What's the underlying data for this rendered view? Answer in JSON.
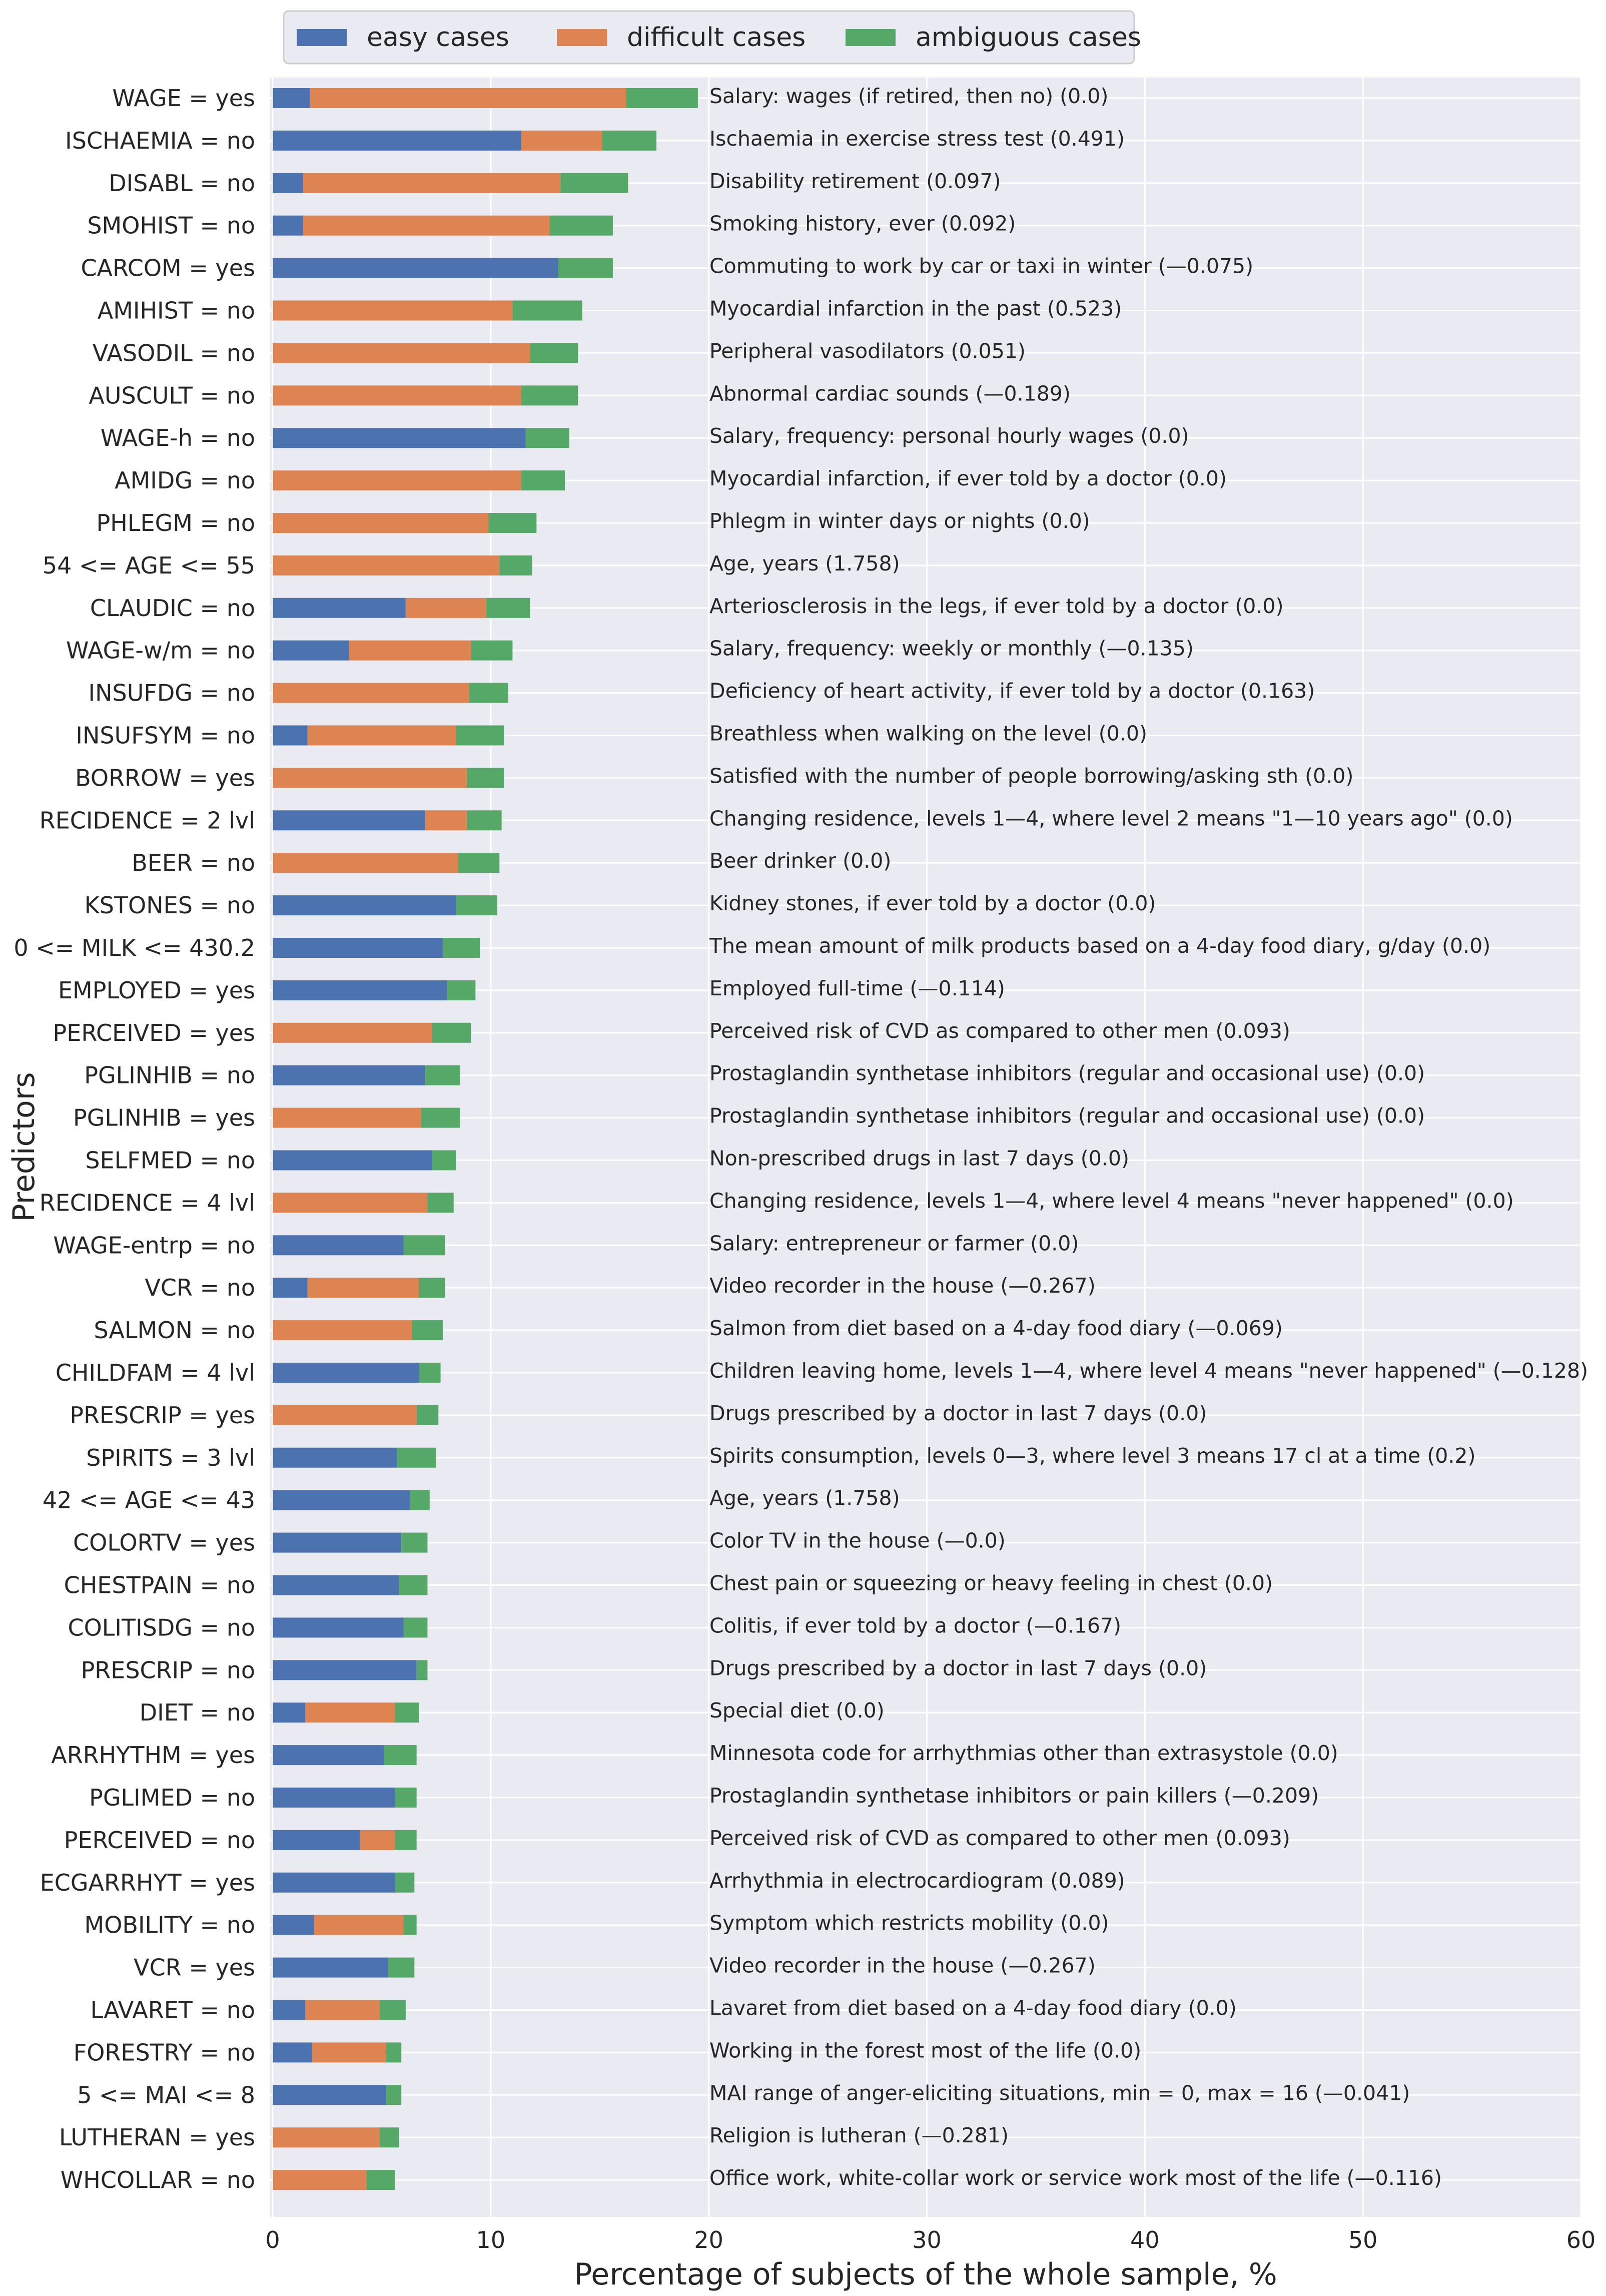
{
  "chart_data": {
    "type": "bar",
    "orientation": "horizontal",
    "stacked": true,
    "xlabel": "Percentage of subjects of the whole sample, %",
    "ylabel": "Predictors",
    "xlim": [
      0,
      60
    ],
    "xticks": [
      0,
      10,
      20,
      30,
      40,
      50,
      60
    ],
    "grid": true,
    "legend_position": "top",
    "series": [
      {
        "name": "easy cases",
        "color": "#4c72b0"
      },
      {
        "name": "difficult cases",
        "color": "#dd8452"
      },
      {
        "name": "ambiguous cases",
        "color": "#55a868"
      }
    ],
    "rows": [
      {
        "predictor": "WAGE = yes",
        "description": "Salary: wages (if retired, then no) (0.0)",
        "easy": 1.7,
        "difficult": 14.5,
        "ambiguous": 3.3
      },
      {
        "predictor": "ISCHAEMIA = no",
        "description": "Ischaemia in exercise stress test (0.491)",
        "easy": 11.4,
        "difficult": 3.7,
        "ambiguous": 2.5
      },
      {
        "predictor": "DISABL = no",
        "description": "Disability retirement (0.097)",
        "easy": 1.4,
        "difficult": 11.8,
        "ambiguous": 3.1
      },
      {
        "predictor": "SMOHIST = no",
        "description": "Smoking history, ever (0.092)",
        "easy": 1.4,
        "difficult": 11.3,
        "ambiguous": 2.9
      },
      {
        "predictor": "CARCOM = yes",
        "description": "Commuting to work by car or taxi in winter (—0.075)",
        "easy": 13.1,
        "difficult": 0,
        "ambiguous": 2.5
      },
      {
        "predictor": "AMIHIST = no",
        "description": "Myocardial infarction in the past (0.523)",
        "easy": 0,
        "difficult": 11.0,
        "ambiguous": 3.2
      },
      {
        "predictor": "VASODIL = no",
        "description": "Peripheral vasodilators (0.051)",
        "easy": 0,
        "difficult": 11.8,
        "ambiguous": 2.2
      },
      {
        "predictor": "AUSCULT = no",
        "description": "Abnormal cardiac sounds (—0.189)",
        "easy": 0,
        "difficult": 11.4,
        "ambiguous": 2.6
      },
      {
        "predictor": "WAGE-h = no",
        "description": "Salary, frequency: personal hourly wages (0.0)",
        "easy": 11.6,
        "difficult": 0,
        "ambiguous": 2.0
      },
      {
        "predictor": "AMIDG = no",
        "description": "Myocardial infarction, if ever told by a doctor (0.0)",
        "easy": 0,
        "difficult": 11.4,
        "ambiguous": 2.0
      },
      {
        "predictor": "PHLEGM = no",
        "description": "Phlegm in winter days or nights (0.0)",
        "easy": 0,
        "difficult": 9.9,
        "ambiguous": 2.2
      },
      {
        "predictor": "54 <= AGE <= 55",
        "description": "Age, years (1.758)",
        "easy": 0,
        "difficult": 10.4,
        "ambiguous": 1.5
      },
      {
        "predictor": "CLAUDIC = no",
        "description": "Arteriosclerosis in the legs, if ever told by a doctor (0.0)",
        "easy": 6.1,
        "difficult": 3.7,
        "ambiguous": 2.0
      },
      {
        "predictor": "WAGE-w/m = no",
        "description": "Salary, frequency: weekly or monthly (—0.135)",
        "easy": 3.5,
        "difficult": 5.6,
        "ambiguous": 1.9
      },
      {
        "predictor": "INSUFDG = no",
        "description": "Deficiency of heart activity, if ever told by a doctor (0.163)",
        "easy": 0,
        "difficult": 9.0,
        "ambiguous": 1.8
      },
      {
        "predictor": "INSUFSYM = no",
        "description": "Breathless when walking on the level (0.0)",
        "easy": 1.6,
        "difficult": 6.8,
        "ambiguous": 2.2
      },
      {
        "predictor": "BORROW = yes",
        "description": "Satisfied with the number of people borrowing/asking sth (0.0)",
        "easy": 0,
        "difficult": 8.9,
        "ambiguous": 1.7
      },
      {
        "predictor": "RECIDENCE = 2 lvl",
        "description": "Changing residence, levels 1—4, where level 2 means \"1—10 years ago\" (0.0)",
        "easy": 7.0,
        "difficult": 1.9,
        "ambiguous": 1.6
      },
      {
        "predictor": "BEER = no",
        "description": "Beer drinker (0.0)",
        "easy": 0,
        "difficult": 8.5,
        "ambiguous": 1.9
      },
      {
        "predictor": "KSTONES = no",
        "description": "Kidney stones, if ever told by a doctor (0.0)",
        "easy": 8.4,
        "difficult": 0,
        "ambiguous": 1.9
      },
      {
        "predictor": "0 <= MILK <= 430.2",
        "description": "The mean amount of milk products based on a 4-day food diary, g/day (0.0)",
        "easy": 7.8,
        "difficult": 0,
        "ambiguous": 1.7
      },
      {
        "predictor": "EMPLOYED = yes",
        "description": "Employed full-time (—0.114)",
        "easy": 8.0,
        "difficult": 0,
        "ambiguous": 1.3
      },
      {
        "predictor": "PERCEIVED = yes",
        "description": "Perceived risk of CVD as compared to other men (0.093)",
        "easy": 0,
        "difficult": 7.3,
        "ambiguous": 1.8
      },
      {
        "predictor": "PGLINHIB = no",
        "description": "Prostaglandin synthetase inhibitors (regular and occasional use) (0.0)",
        "easy": 7.0,
        "difficult": 0,
        "ambiguous": 1.6
      },
      {
        "predictor": "PGLINHIB = yes",
        "description": "Prostaglandin synthetase inhibitors (regular and occasional use) (0.0)",
        "easy": 0,
        "difficult": 6.8,
        "ambiguous": 1.8
      },
      {
        "predictor": "SELFMED = no",
        "description": "Non-prescribed drugs in last 7 days (0.0)",
        "easy": 7.3,
        "difficult": 0,
        "ambiguous": 1.1
      },
      {
        "predictor": "RECIDENCE = 4 lvl",
        "description": "Changing residence, levels 1—4, where level 4 means \"never happened\" (0.0)",
        "easy": 0,
        "difficult": 7.1,
        "ambiguous": 1.2
      },
      {
        "predictor": "WAGE-entrp = no",
        "description": "Salary: entrepreneur or farmer (0.0)",
        "easy": 6.0,
        "difficult": 0,
        "ambiguous": 1.9
      },
      {
        "predictor": "VCR = no",
        "description": "Video recorder in the house (—0.267)",
        "easy": 1.6,
        "difficult": 5.1,
        "ambiguous": 1.2
      },
      {
        "predictor": "SALMON = no",
        "description": "Salmon from diet based on a 4-day food diary (—0.069)",
        "easy": 0,
        "difficult": 6.4,
        "ambiguous": 1.4
      },
      {
        "predictor": "CHILDFAM = 4 lvl",
        "description": "Children leaving home, levels 1—4, where level 4 means \"never happened\" (—0.128)",
        "easy": 6.7,
        "difficult": 0,
        "ambiguous": 1.0
      },
      {
        "predictor": "PRESCRIP = yes",
        "description": "Drugs prescribed by a doctor in last 7 days (0.0)",
        "easy": 0,
        "difficult": 6.6,
        "ambiguous": 1.0
      },
      {
        "predictor": "SPIRITS = 3 lvl",
        "description": "Spirits consumption, levels 0—3, where level 3 means 17 cl at a time (0.2)",
        "easy": 5.7,
        "difficult": 0,
        "ambiguous": 1.8
      },
      {
        "predictor": "42 <= AGE <= 43",
        "description": "Age, years (1.758)",
        "easy": 6.3,
        "difficult": 0,
        "ambiguous": 0.9
      },
      {
        "predictor": "COLORTV = yes",
        "description": "Color TV in the house (—0.0)",
        "easy": 5.9,
        "difficult": 0,
        "ambiguous": 1.2
      },
      {
        "predictor": "CHESTPAIN = no",
        "description": "Chest pain or squeezing or heavy feeling in chest (0.0)",
        "easy": 5.8,
        "difficult": 0,
        "ambiguous": 1.3
      },
      {
        "predictor": "COLITISDG = no",
        "description": "Colitis, if ever told by a doctor (—0.167)",
        "easy": 6.0,
        "difficult": 0,
        "ambiguous": 1.1
      },
      {
        "predictor": "PRESCRIP = no",
        "description": "Drugs prescribed by a doctor in last 7 days (0.0)",
        "easy": 6.6,
        "difficult": 0,
        "ambiguous": 0.5
      },
      {
        "predictor": "DIET = no",
        "description": "Special diet (0.0)",
        "easy": 1.5,
        "difficult": 4.1,
        "ambiguous": 1.1
      },
      {
        "predictor": "ARRHYTHM = yes",
        "description": "Minnesota code for arrhythmias other than extrasystole (0.0)",
        "easy": 5.1,
        "difficult": 0,
        "ambiguous": 1.5
      },
      {
        "predictor": "PGLIMED = no",
        "description": "Prostaglandin synthetase inhibitors or pain killers (—0.209)",
        "easy": 5.6,
        "difficult": 0,
        "ambiguous": 1.0
      },
      {
        "predictor": "PERCEIVED = no",
        "description": "Perceived risk of CVD as compared to other men (0.093)",
        "easy": 4.0,
        "difficult": 1.6,
        "ambiguous": 1.0
      },
      {
        "predictor": "ECGARRHYT = yes",
        "description": "Arrhythmia in electrocardiogram (0.089)",
        "easy": 5.6,
        "difficult": 0,
        "ambiguous": 0.9
      },
      {
        "predictor": "MOBILITY = no",
        "description": "Symptom which restricts mobility (0.0)",
        "easy": 1.9,
        "difficult": 4.1,
        "ambiguous": 0.6
      },
      {
        "predictor": "VCR = yes",
        "description": "Video recorder in the house (—0.267)",
        "easy": 5.3,
        "difficult": 0,
        "ambiguous": 1.2
      },
      {
        "predictor": "LAVARET = no",
        "description": "Lavaret from diet based on a 4-day food diary (0.0)",
        "easy": 1.5,
        "difficult": 3.4,
        "ambiguous": 1.2
      },
      {
        "predictor": "FORESTRY = no",
        "description": "Working in the forest most of the life (0.0)",
        "easy": 1.8,
        "difficult": 3.4,
        "ambiguous": 0.7
      },
      {
        "predictor": "5 <= MAI <= 8",
        "description": "MAI range of anger-eliciting situations, min = 0, max = 16 (—0.041)",
        "easy": 5.2,
        "difficult": 0,
        "ambiguous": 0.7
      },
      {
        "predictor": "LUTHERAN = yes",
        "description": "Religion is lutheran (—0.281)",
        "easy": 0,
        "difficult": 4.9,
        "ambiguous": 0.9
      },
      {
        "predictor": "WHCOLLAR = no",
        "description": "Office work, white-collar work or service work most of the life (—0.116)",
        "easy": 0,
        "difficult": 4.3,
        "ambiguous": 1.3
      }
    ]
  }
}
